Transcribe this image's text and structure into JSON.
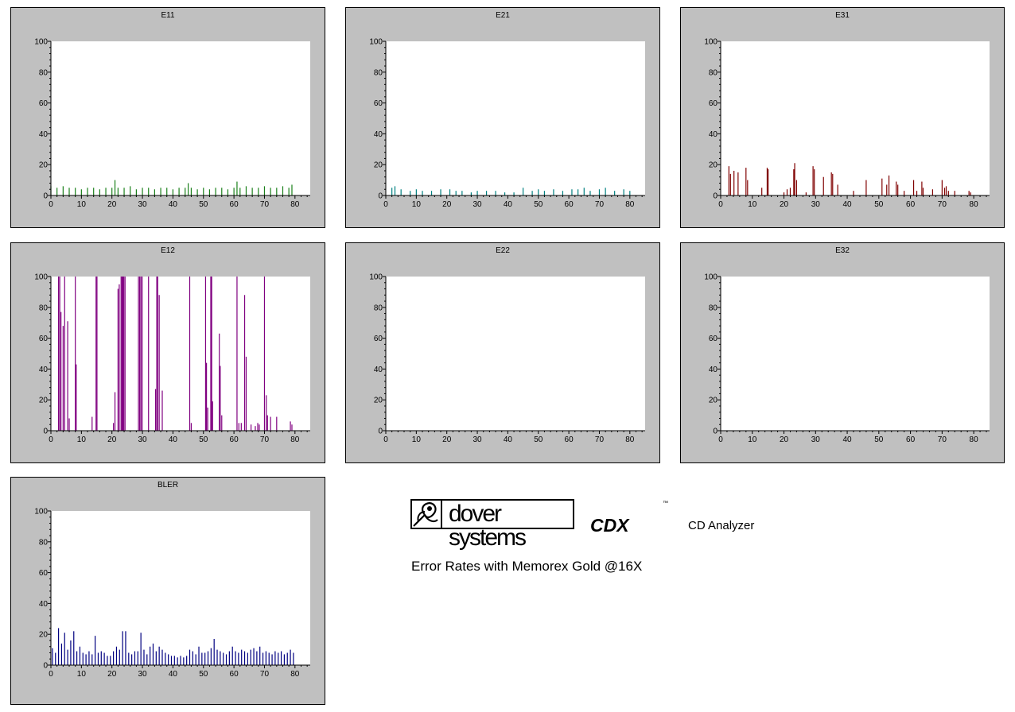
{
  "chart_data": [
    {
      "type": "bar",
      "title": "E11",
      "color": "#1a801a",
      "xlim": [
        0,
        85
      ],
      "ylim": [
        0,
        100
      ],
      "xticks": [
        0,
        10,
        20,
        30,
        40,
        50,
        60,
        70,
        80
      ],
      "yticks": [
        0,
        20,
        40,
        60,
        80,
        100
      ],
      "x": [
        0,
        2,
        4,
        6,
        8,
        10,
        12,
        14,
        16,
        18,
        20,
        21,
        22,
        24,
        26,
        28,
        30,
        32,
        34,
        36,
        38,
        40,
        42,
        44,
        45,
        46,
        48,
        50,
        52,
        54,
        56,
        58,
        60,
        61,
        62,
        64,
        66,
        68,
        70,
        72,
        74,
        76,
        78,
        79
      ],
      "values": [
        6,
        5,
        6,
        5,
        5,
        4,
        5,
        5,
        4,
        5,
        5,
        10,
        5,
        5,
        6,
        4,
        5,
        5,
        4,
        5,
        5,
        4,
        5,
        5,
        8,
        5,
        4,
        5,
        4,
        5,
        5,
        4,
        5,
        9,
        5,
        6,
        5,
        5,
        6,
        5,
        5,
        6,
        5,
        7
      ]
    },
    {
      "type": "bar",
      "title": "E21",
      "color": "#008080",
      "xlim": [
        0,
        85
      ],
      "ylim": [
        0,
        100
      ],
      "xticks": [
        0,
        10,
        20,
        30,
        40,
        50,
        60,
        70,
        80
      ],
      "yticks": [
        0,
        20,
        40,
        60,
        80,
        100
      ],
      "x": [
        2,
        3,
        5,
        8,
        10,
        12,
        15,
        18,
        21,
        23,
        25,
        28,
        30,
        33,
        36,
        39,
        42,
        45,
        48,
        50,
        52,
        55,
        58,
        61,
        63,
        65,
        67,
        70,
        72,
        75,
        78,
        80
      ],
      "values": [
        5,
        6,
        4,
        3,
        4,
        3,
        3,
        4,
        4,
        3,
        3,
        2,
        3,
        3,
        3,
        2,
        2,
        5,
        3,
        4,
        3,
        4,
        3,
        4,
        4,
        5,
        3,
        4,
        5,
        3,
        4,
        3
      ]
    },
    {
      "type": "bar",
      "title": "E31",
      "color": "#800000",
      "xlim": [
        0,
        85
      ],
      "ylim": [
        0,
        100
      ],
      "xticks": [
        0,
        10,
        20,
        30,
        40,
        50,
        60,
        70,
        80
      ],
      "yticks": [
        0,
        20,
        40,
        60,
        80,
        100
      ],
      "x": [
        2.6,
        3.1,
        4.2,
        5.5,
        8,
        8.5,
        13,
        14.7,
        15,
        20,
        21,
        22,
        23.1,
        23.4,
        24,
        27,
        29.2,
        29.6,
        32.5,
        35,
        35.4,
        37,
        42,
        46,
        51,
        52.5,
        53.2,
        55.5,
        56,
        58,
        61,
        62,
        63.6,
        64,
        67,
        70,
        70.8,
        71.3,
        72,
        74,
        78.5,
        79
      ],
      "values": [
        19,
        14,
        16,
        15,
        18,
        10,
        5,
        18,
        17,
        2,
        4,
        5,
        17,
        21,
        10,
        2,
        19,
        17,
        12,
        15,
        14,
        7,
        3,
        10,
        11,
        7,
        13,
        9,
        7,
        3,
        10,
        3,
        9,
        5,
        4,
        10,
        5,
        6,
        3,
        3,
        3,
        2
      ]
    },
    {
      "type": "bar",
      "title": "E12",
      "color": "#800080",
      "xlim": [
        0,
        85
      ],
      "ylim": [
        0,
        100
      ],
      "xticks": [
        0,
        10,
        20,
        30,
        40,
        50,
        60,
        70,
        80
      ],
      "yticks": [
        0,
        20,
        40,
        60,
        80,
        100
      ],
      "x": [
        2.5,
        2.9,
        3.3,
        4,
        4.5,
        5.5,
        6,
        8,
        8.3,
        13.5,
        14.8,
        15.1,
        20.5,
        21,
        22,
        22.4,
        23,
        23.3,
        23.6,
        23.9,
        24.3,
        28.7,
        29.1,
        29.5,
        29.9,
        32,
        34.3,
        34.7,
        35,
        35.5,
        36.5,
        45.5,
        46,
        50.7,
        51,
        51.4,
        52.4,
        52.7,
        53,
        55.2,
        55.5,
        56,
        61,
        61.6,
        62.4,
        63.5,
        64,
        65.6,
        67,
        67.8,
        68.3,
        70,
        70.6,
        71,
        72,
        74,
        78.5,
        79
      ],
      "values": [
        100,
        100,
        77,
        68,
        100,
        71,
        8,
        100,
        43,
        9,
        100,
        100,
        5,
        25,
        92,
        95,
        100,
        100,
        100,
        100,
        100,
        100,
        100,
        100,
        100,
        100,
        27,
        100,
        100,
        88,
        26,
        100,
        5,
        100,
        44,
        15,
        100,
        100,
        19,
        63,
        42,
        10,
        100,
        5,
        5,
        88,
        48,
        4,
        3,
        5,
        4,
        100,
        23,
        10,
        9,
        9,
        6,
        4
      ]
    },
    {
      "type": "bar",
      "title": "E22",
      "color": "#800000",
      "xlim": [
        0,
        85
      ],
      "ylim": [
        0,
        100
      ],
      "xticks": [
        0,
        10,
        20,
        30,
        40,
        50,
        60,
        70,
        80
      ],
      "yticks": [
        0,
        20,
        40,
        60,
        80,
        100
      ],
      "x": [],
      "values": []
    },
    {
      "type": "bar",
      "title": "E32",
      "color": "#800000",
      "xlim": [
        0,
        85
      ],
      "ylim": [
        0,
        100
      ],
      "xticks": [
        0,
        10,
        20,
        30,
        40,
        50,
        60,
        70,
        80
      ],
      "yticks": [
        0,
        20,
        40,
        60,
        80,
        100
      ],
      "x": [],
      "values": []
    },
    {
      "type": "bar",
      "title": "BLER",
      "color": "#000080",
      "xlim": [
        0,
        85
      ],
      "ylim": [
        0,
        100
      ],
      "xticks": [
        0,
        10,
        20,
        30,
        40,
        50,
        60,
        70,
        80
      ],
      "yticks": [
        0,
        20,
        40,
        60,
        80,
        100
      ],
      "x": [
        0.5,
        1.5,
        2.5,
        3.5,
        4.5,
        5.5,
        6.5,
        7.5,
        8.5,
        9.5,
        10.5,
        11.5,
        12.5,
        13.5,
        14.5,
        15.5,
        16.5,
        17.5,
        18.5,
        19.5,
        20.5,
        21.5,
        22.5,
        23.5,
        24.5,
        25.5,
        26.5,
        27.5,
        28.5,
        29.5,
        30.5,
        31.5,
        32.5,
        33.5,
        34.5,
        35.5,
        36.5,
        37.5,
        38.5,
        39.5,
        40.5,
        41.5,
        42.5,
        43.5,
        44.5,
        45.5,
        46.5,
        47.5,
        48.5,
        49.5,
        50.5,
        51.5,
        52.5,
        53.5,
        54.5,
        55.5,
        56.5,
        57.5,
        58.5,
        59.5,
        60.5,
        61.5,
        62.5,
        63.5,
        64.5,
        65.5,
        66.5,
        67.5,
        68.5,
        69.5,
        70.5,
        71.5,
        72.5,
        73.5,
        74.5,
        75.5,
        76.5,
        77.5,
        78.5,
        79.5
      ],
      "values": [
        11,
        8,
        24,
        14,
        21,
        10,
        16,
        22,
        9,
        12,
        8,
        7,
        9,
        7,
        19,
        8,
        9,
        8,
        6,
        6,
        9,
        12,
        10,
        22,
        22,
        8,
        7,
        9,
        9,
        21,
        10,
        7,
        12,
        14,
        9,
        12,
        10,
        8,
        7,
        6,
        6,
        5,
        6,
        5,
        6,
        10,
        9,
        7,
        12,
        8,
        8,
        9,
        11,
        17,
        10,
        9,
        8,
        7,
        9,
        12,
        9,
        8,
        10,
        9,
        8,
        10,
        11,
        9,
        12,
        8,
        9,
        8,
        7,
        9,
        8,
        9,
        7,
        8,
        10,
        8
      ]
    }
  ],
  "brand": {
    "logo_text": "dover systems",
    "product": "CDX",
    "tm": "™",
    "tagline": "CD Analyzer",
    "subtitle": "Error Rates with Memorex Gold @16X"
  }
}
